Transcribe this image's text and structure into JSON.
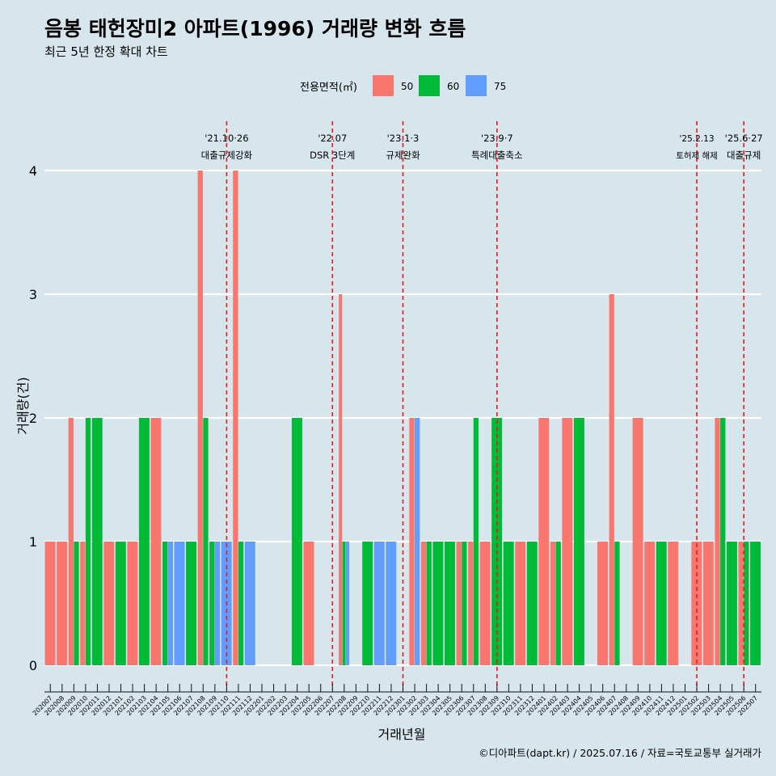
{
  "chart_data": {
    "type": "bar",
    "title": "음봉 태헌장미2 아파트(1996) 거래량 변화 흐름",
    "subtitle": "최근 5년 한정 확대 차트",
    "xlabel": "거래년월",
    "ylabel": "거래량(건)",
    "ylim": [
      0,
      4.2
    ],
    "yticks": [
      0,
      1,
      2,
      3,
      4
    ],
    "legend": {
      "title": "전용면적(㎡)",
      "position": "top"
    },
    "caption": "©디아파트(dapt.kr) / 2025.07.16 / 자료=국토교통부 실거래가",
    "categories": [
      "202007",
      "202008",
      "202009",
      "202010",
      "202011",
      "202012",
      "202101",
      "202102",
      "202103",
      "202104",
      "202105",
      "202106",
      "202107",
      "202108",
      "202109",
      "202110",
      "202111",
      "202112",
      "202201",
      "202202",
      "202203",
      "202204",
      "202205",
      "202206",
      "202207",
      "202208",
      "202209",
      "202210",
      "202211",
      "202212",
      "202301",
      "202302",
      "202303",
      "202304",
      "202305",
      "202306",
      "202307",
      "202308",
      "202309",
      "202310",
      "202311",
      "202312",
      "202401",
      "202402",
      "202403",
      "202404",
      "202405",
      "202406",
      "202407",
      "202408",
      "202409",
      "202410",
      "202411",
      "202412",
      "202501",
      "202502",
      "202503",
      "202504",
      "202505",
      "202506",
      "202507"
    ],
    "series": [
      {
        "name": "50",
        "color": "#f8766d",
        "values": [
          1,
          1,
          2,
          1,
          0,
          1,
          0,
          1,
          0,
          2,
          0,
          0,
          0,
          4,
          0,
          0,
          4,
          0,
          0,
          0,
          0,
          0,
          1,
          0,
          0,
          3,
          0,
          0,
          0,
          0,
          0,
          2,
          1,
          0,
          0,
          1,
          1,
          1,
          0,
          0,
          1,
          0,
          2,
          1,
          2,
          0,
          0,
          1,
          3,
          0,
          2,
          1,
          0,
          1,
          0,
          1,
          1,
          2,
          0,
          1,
          0
        ]
      },
      {
        "name": "60",
        "color": "#00ba38",
        "values": [
          0,
          0,
          1,
          2,
          2,
          0,
          1,
          0,
          2,
          0,
          1,
          0,
          1,
          2,
          1,
          0,
          1,
          0,
          0,
          0,
          0,
          2,
          0,
          0,
          0,
          1,
          0,
          1,
          0,
          0,
          0,
          0,
          1,
          1,
          1,
          1,
          2,
          0,
          2,
          1,
          0,
          1,
          0,
          1,
          0,
          2,
          0,
          0,
          1,
          0,
          0,
          0,
          1,
          0,
          0,
          0,
          0,
          2,
          1,
          1,
          1
        ]
      },
      {
        "name": "75",
        "color": "#619cff",
        "values": [
          0,
          0,
          0,
          0,
          0,
          0,
          0,
          0,
          0,
          0,
          1,
          1,
          0,
          0,
          1,
          1,
          0,
          1,
          0,
          0,
          0,
          0,
          0,
          0,
          0,
          1,
          0,
          0,
          1,
          1,
          0,
          2,
          0,
          0,
          0,
          0,
          0,
          0,
          0,
          0,
          0,
          0,
          0,
          0,
          0,
          0,
          0,
          0,
          0,
          0,
          0,
          0,
          0,
          0,
          0,
          0,
          0,
          0,
          0,
          0,
          0
        ]
      }
    ],
    "events": [
      {
        "x": "202110",
        "label1": "'21.10·26",
        "label2": "대출규제강화"
      },
      {
        "x": "202207",
        "label1": "'22.07",
        "label2": "DSR 3단계"
      },
      {
        "x": "202301",
        "label1": "'23.1·3",
        "label2": "규제완화"
      },
      {
        "x": "202309",
        "label1": "'23.9·7",
        "label2": "특례대출축소"
      },
      {
        "x": "202502",
        "label1": "'25.2.13",
        "label2": "토허제 해제"
      },
      {
        "x": "202506",
        "label1": "'25.6·27",
        "label2": "대출규제"
      }
    ],
    "event_color": "#e41a1c",
    "grid": true
  }
}
